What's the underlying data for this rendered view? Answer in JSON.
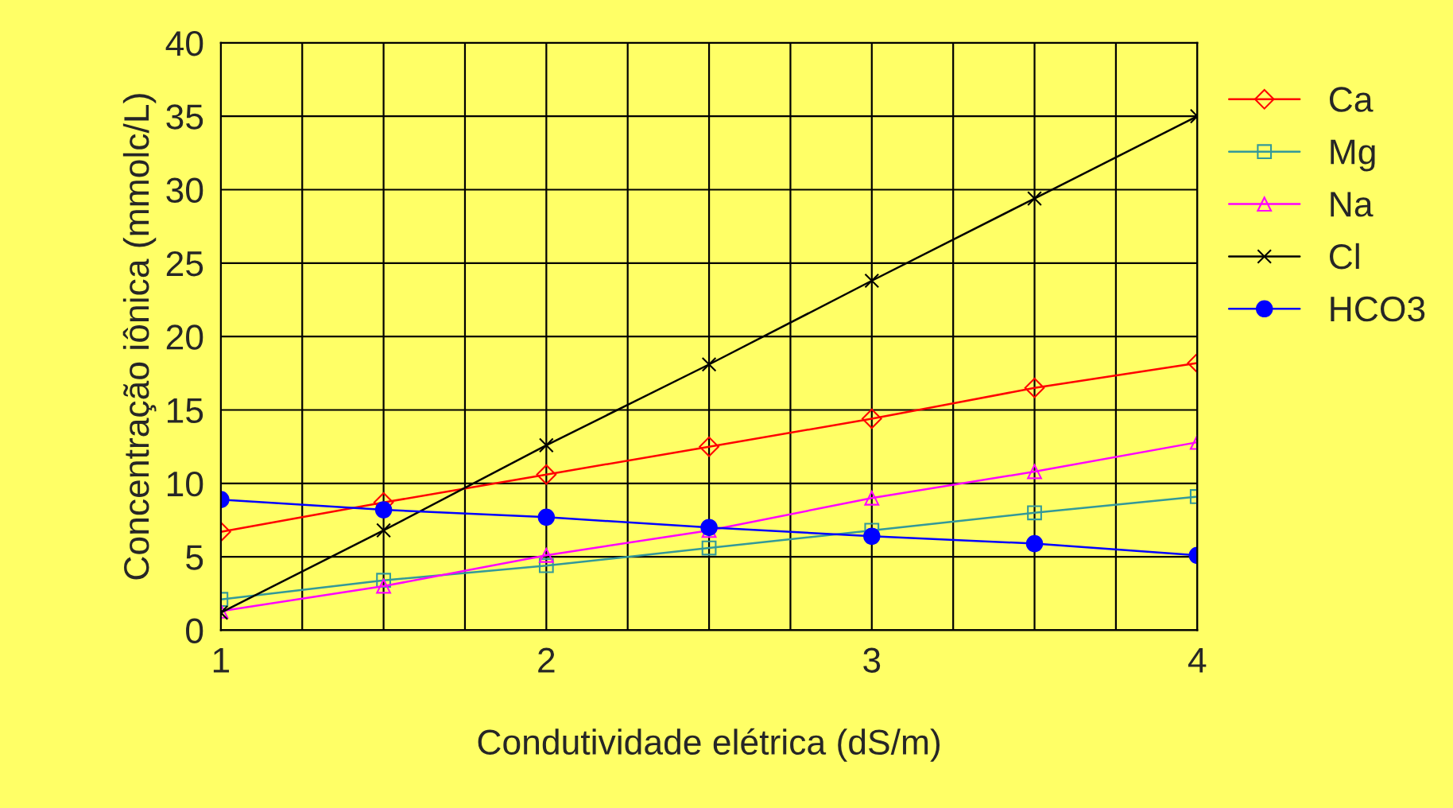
{
  "chart_data": {
    "type": "line",
    "xlabel": "Condutividade elétrica (dS/m)",
    "ylabel": "Concentração iônica (mmolc/L)",
    "x": [
      1,
      1.5,
      2,
      2.5,
      3,
      3.5,
      4
    ],
    "series": [
      {
        "name": "Ca",
        "color": "#ff0000",
        "marker": "diamond",
        "values": [
          6.7,
          8.7,
          10.6,
          12.5,
          14.4,
          16.5,
          18.2
        ]
      },
      {
        "name": "Mg",
        "color": "#339999",
        "marker": "square",
        "values": [
          2.1,
          3.4,
          4.4,
          5.6,
          6.8,
          8.0,
          9.1
        ]
      },
      {
        "name": "Na",
        "color": "#ff00ff",
        "marker": "triangle",
        "values": [
          1.3,
          3.0,
          5.1,
          6.8,
          9.0,
          10.8,
          12.8
        ]
      },
      {
        "name": "Cl",
        "color": "#000000",
        "marker": "cross",
        "values": [
          1.2,
          6.8,
          12.6,
          18.1,
          23.8,
          29.4,
          35.0
        ]
      },
      {
        "name": "HCO3",
        "color": "#0000ff",
        "marker": "circle",
        "values": [
          8.9,
          8.2,
          7.7,
          7.0,
          6.4,
          5.9,
          5.1
        ]
      }
    ],
    "xlim": [
      1,
      4
    ],
    "ylim": [
      0,
      40
    ],
    "xticks": [
      1,
      {
        "value": 1.25,
        "label": null
      },
      {
        "value": 1.5,
        "label": null
      },
      {
        "value": 1.75,
        "label": null
      },
      2,
      {
        "value": 2.25,
        "label": null
      },
      {
        "value": 2.5,
        "label": null
      },
      {
        "value": 2.75,
        "label": null
      },
      3,
      {
        "value": 3.25,
        "label": null
      },
      {
        "value": 3.5,
        "label": null
      },
      {
        "value": 3.75,
        "label": null
      },
      4
    ],
    "yticks": [
      0,
      5,
      10,
      15,
      20,
      25,
      30,
      35,
      40
    ],
    "grid": true,
    "legend": "right",
    "line_style": "solid"
  }
}
